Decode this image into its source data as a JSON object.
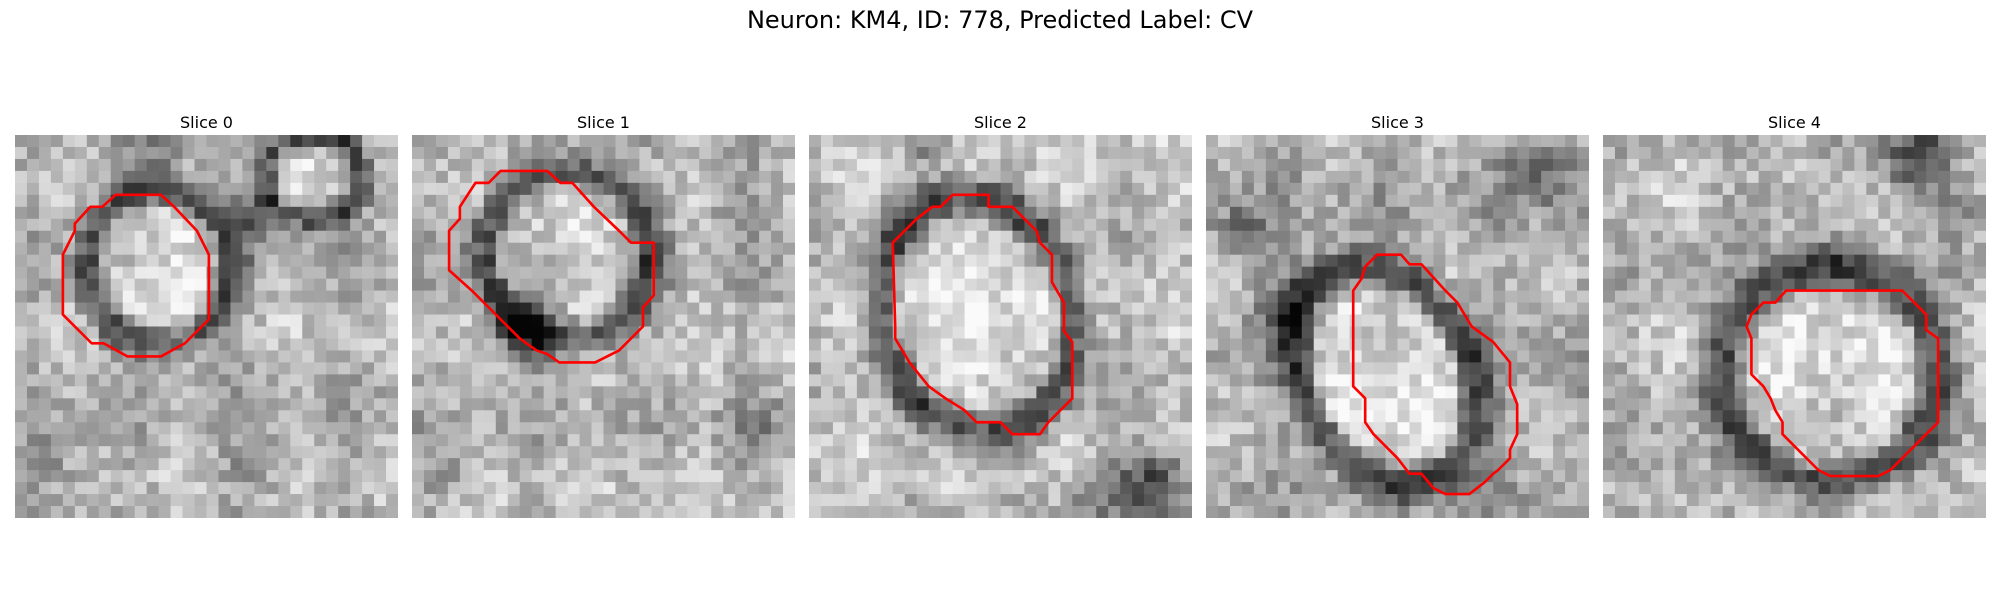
{
  "figure": {
    "title": "Neuron: KM4, ID: 778, Predicted Label: CV"
  },
  "panels": [
    {
      "title": "Slice 0"
    },
    {
      "title": "Slice 1"
    },
    {
      "title": "Slice 2"
    },
    {
      "title": "Slice 3"
    },
    {
      "title": "Slice 4"
    }
  ],
  "colors": {
    "contour": "#ff0000",
    "colormap": "grayscale"
  }
}
